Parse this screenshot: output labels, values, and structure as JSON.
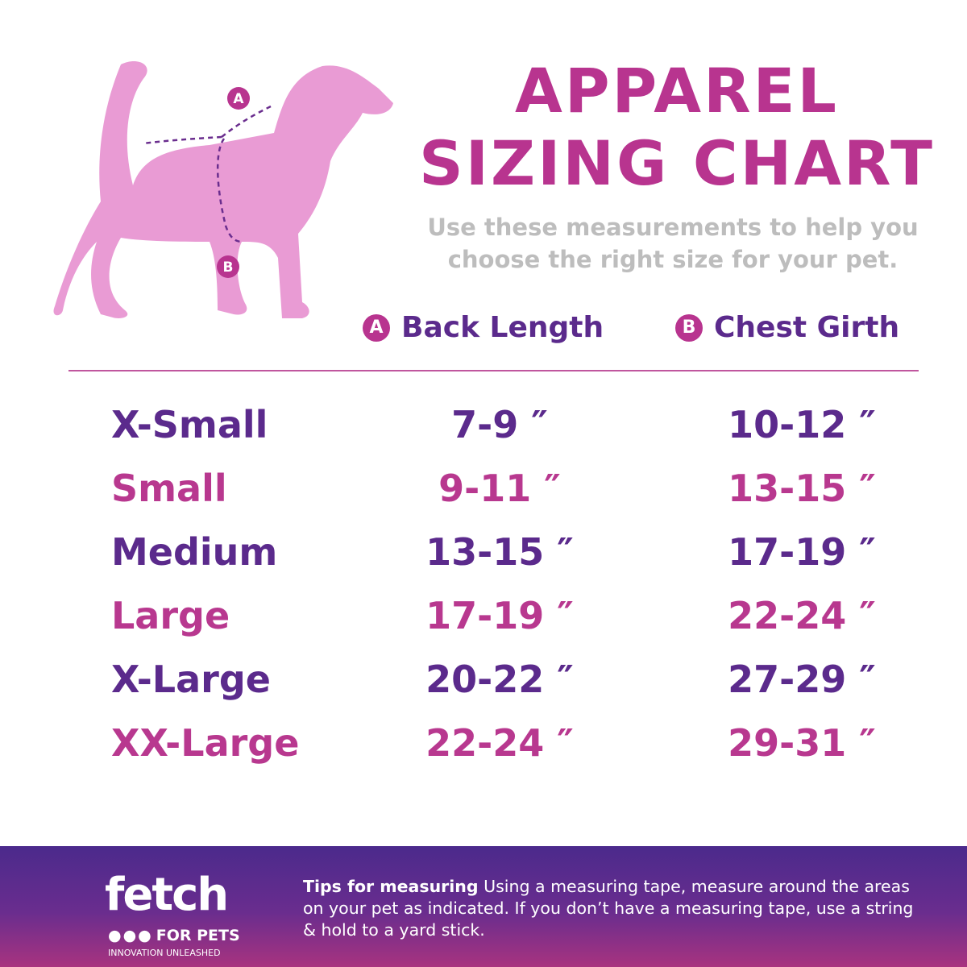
{
  "header": {
    "title_lines": [
      "APPAREL",
      "SIZING CHART"
    ],
    "subtitle_lines": [
      "Use these measurements to help you",
      "choose the right size for your pet."
    ]
  },
  "legend": [
    {
      "marker": "A",
      "label": "Back Length"
    },
    {
      "marker": "B",
      "label": "Chest Girth"
    }
  ],
  "diagram": {
    "markers": [
      "A",
      "B"
    ]
  },
  "table": {
    "rows": [
      [
        "X-Small",
        "7-9 ″",
        "10-12 ″"
      ],
      [
        "Small",
        "9-11 ″",
        "13-15 ″"
      ],
      [
        "Medium",
        "13-15 ″",
        "17-19 ″"
      ],
      [
        "Large",
        "17-19 ″",
        "22-24 ″"
      ],
      [
        "X-Large",
        "20-22 ″",
        "27-29 ″"
      ],
      [
        "XX-Large",
        "22-24 ″",
        "29-31 ″"
      ]
    ]
  },
  "footer": {
    "logo": {
      "name": "fetch",
      "tagline": "FOR PETS",
      "slogan": "INNOVATION UNLEASHED"
    },
    "tips": {
      "heading": "Tips for measuring",
      "text": "Using a measuring tape, measure around the areas on your pet as indicated. If you don’t have a measuring tape, use a string & hold to a yard stick."
    }
  }
}
